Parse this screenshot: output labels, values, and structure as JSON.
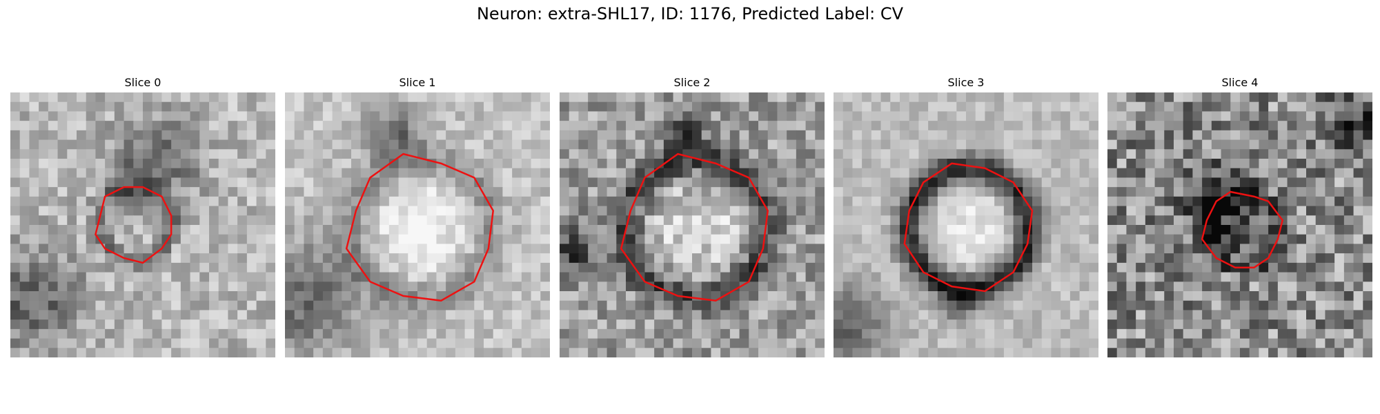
{
  "figure": {
    "title": "Neuron: extra-SHL17, ID: 1176, Predicted Label: CV"
  },
  "outline_color": "#ee1111",
  "panels": [
    {
      "title": "Slice 0",
      "level": 0.72,
      "noise": 0.16,
      "ring_dark": 0.3,
      "center_light": 0.0,
      "outline_size": "small"
    },
    {
      "title": "Slice 1",
      "level": 0.76,
      "noise": 0.12,
      "ring_dark": 0.2,
      "center_light": 0.22,
      "outline_size": "large"
    },
    {
      "title": "Slice 2",
      "level": 0.62,
      "noise": 0.2,
      "ring_dark": 0.35,
      "center_light": 0.25,
      "outline_size": "large"
    },
    {
      "title": "Slice 3",
      "level": 0.74,
      "noise": 0.1,
      "ring_dark": 0.6,
      "center_light": 0.18,
      "outline_size": "medium"
    },
    {
      "title": "Slice 4",
      "level": 0.55,
      "noise": 0.28,
      "ring_dark": 0.25,
      "center_light": 0.0,
      "outline_size": "small"
    }
  ]
}
